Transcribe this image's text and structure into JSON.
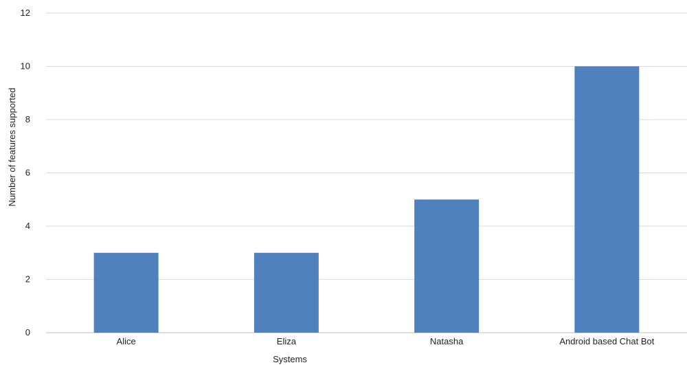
{
  "chart_data": {
    "type": "bar",
    "categories": [
      "Alice",
      "Eliza",
      "Natasha",
      "Android based Chat Bot"
    ],
    "values": [
      3,
      3,
      5,
      10
    ],
    "title": "",
    "xlabel": "Systems",
    "ylabel": "Number of features supported",
    "ylim": [
      0,
      12
    ],
    "yticks": [
      0,
      2,
      4,
      6,
      8,
      10,
      12
    ],
    "grid": true,
    "legend": "none",
    "bar_color": "#4f81bd"
  }
}
